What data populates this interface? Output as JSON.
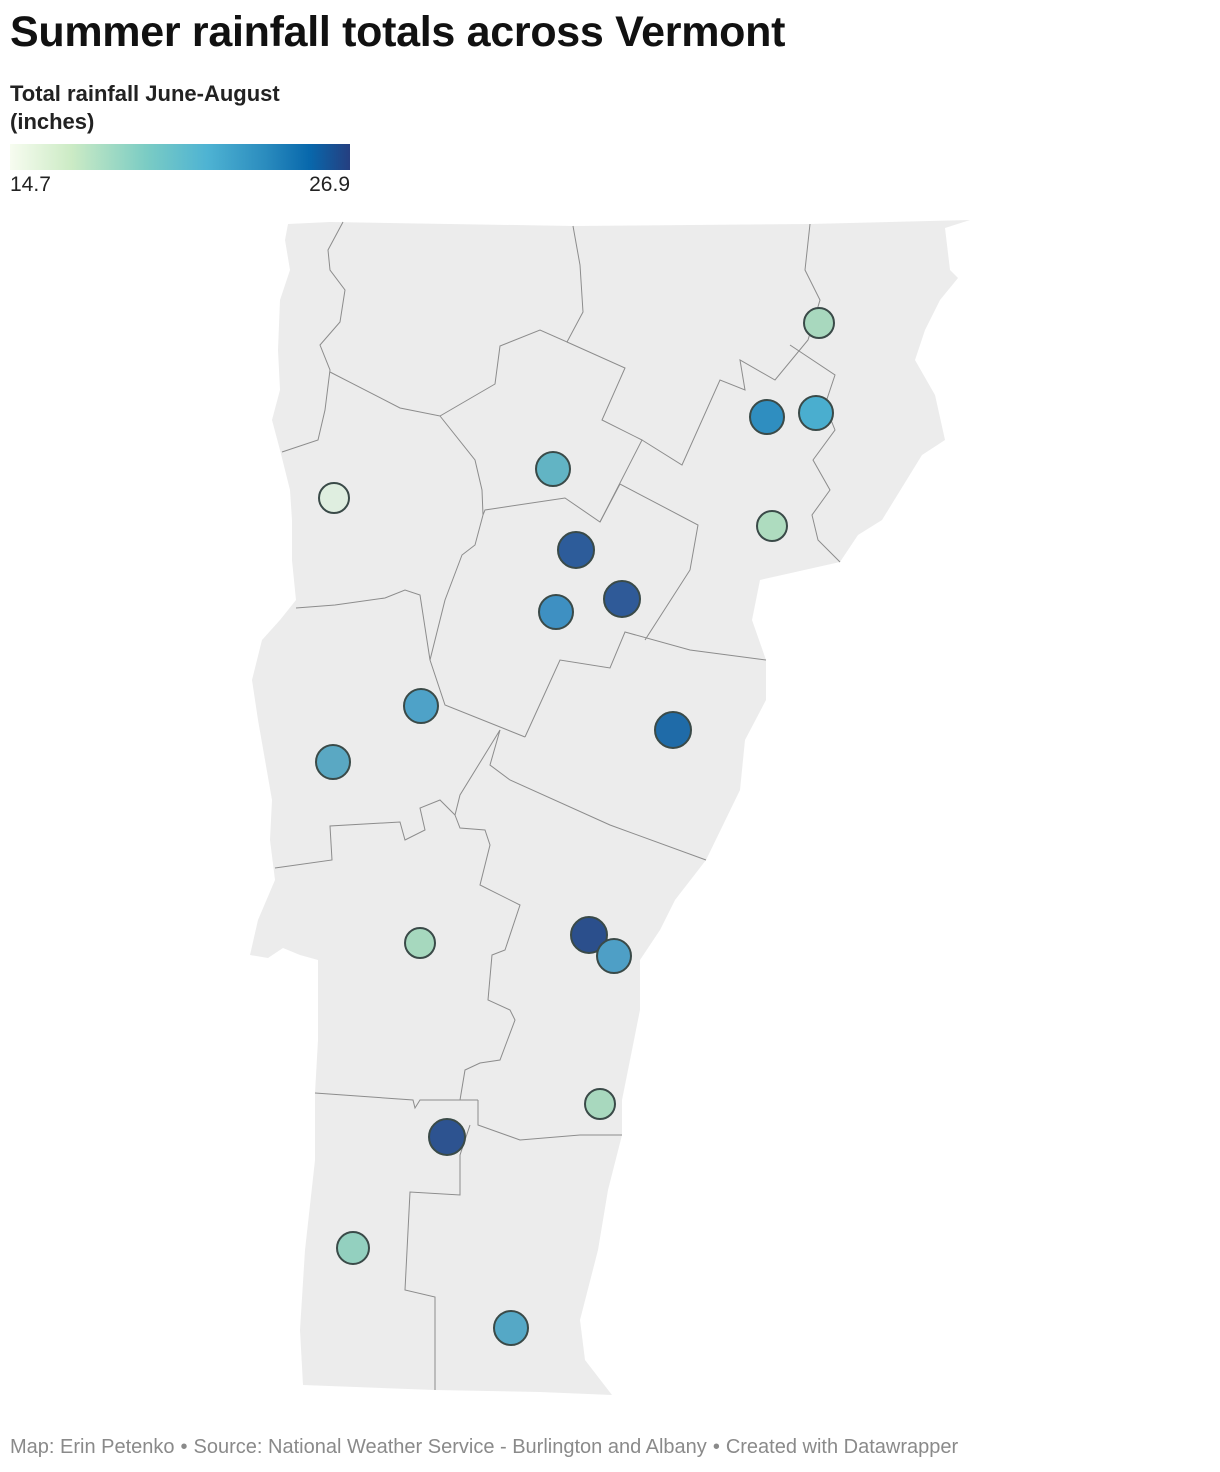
{
  "title": "Summer rainfall totals across Vermont",
  "legend": {
    "title_line1": "Total rainfall June-August",
    "title_line2": "(inches)",
    "min": "14.7",
    "max": "26.9"
  },
  "colors": {
    "land": "#ececec",
    "border": "#8c8c8c",
    "marker_stroke": "#3a4a48",
    "scale": [
      "#f7fcf0",
      "#ccebc5",
      "#7bccc4",
      "#4eb3d3",
      "#2b8cbe",
      "#0868ac",
      "#253f80"
    ]
  },
  "stations": [
    {
      "color": "#a8d8be"
    },
    {
      "color": "#2f8ec0"
    },
    {
      "color": "#4aaecf"
    },
    {
      "color": "#62b4c4"
    },
    {
      "color": "#dfeee0"
    },
    {
      "color": "#aedcbf"
    },
    {
      "color": "#2d5c9a"
    },
    {
      "color": "#2f5a98"
    },
    {
      "color": "#3e90c2"
    },
    {
      "color": "#4ea2c8"
    },
    {
      "color": "#5aa8c3"
    },
    {
      "color": "#1f6ba8"
    },
    {
      "color": "#a6d8be"
    },
    {
      "color": "#2b4f8c"
    },
    {
      "color": "#4e9fc6"
    },
    {
      "color": "#a8d8be"
    },
    {
      "color": "#2d5390"
    },
    {
      "color": "#93d0bf"
    },
    {
      "color": "#55a8c6"
    }
  ],
  "footer": {
    "map_credit": "Map: Erin Petenko",
    "source": "Source: National Weather Service - Burlington and Albany",
    "tool": "Created with Datawrapper",
    "separator": "•"
  }
}
